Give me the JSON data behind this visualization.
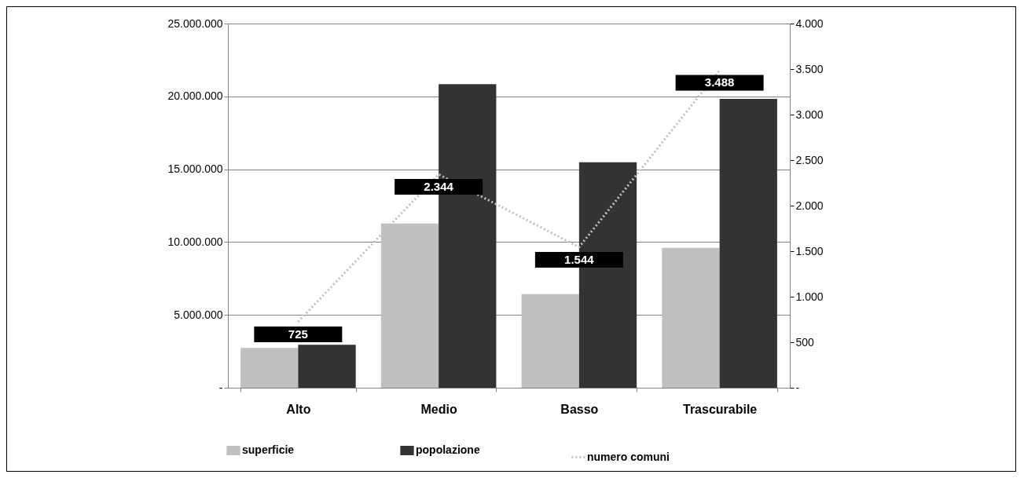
{
  "chart_data": {
    "type": "bar",
    "categories": [
      "Alto",
      "Medio",
      "Basso",
      "Trascurabile"
    ],
    "series": [
      {
        "name": "superficie",
        "color": "#c0c0c0",
        "values": [
          2740000,
          11270000,
          6430000,
          9600000
        ]
      },
      {
        "name": "popolazione",
        "color": "#333333",
        "values": [
          2950000,
          20840000,
          15480000,
          19830000
        ]
      },
      {
        "name": "numero comuni",
        "type": "line",
        "axis": "y2",
        "color": "#c0c0c0",
        "line_style": "dotted",
        "values": [
          725,
          2344,
          1544,
          3488
        ],
        "value_labels": [
          "725",
          "2.344",
          "1.544",
          "3.488"
        ]
      }
    ],
    "ylim": [
      0,
      25000000
    ],
    "yticks": [
      {
        "value": 0,
        "label": "-"
      },
      {
        "value": 5000000,
        "label": "5.000.000"
      },
      {
        "value": 10000000,
        "label": "10.000.000"
      },
      {
        "value": 15000000,
        "label": "15.000.000"
      },
      {
        "value": 20000000,
        "label": "20.000.000"
      },
      {
        "value": 25000000,
        "label": "25.000.000"
      }
    ],
    "y2lim": [
      0,
      4000
    ],
    "y2ticks": [
      {
        "value": 0,
        "label": "-"
      },
      500,
      {
        "value": 1000,
        "label": "1.000"
      },
      {
        "value": 1500,
        "label": "1.500"
      },
      {
        "value": 2000,
        "label": "2.000"
      },
      {
        "value": 2500,
        "label": "2.500"
      },
      {
        "value": 3000,
        "label": "3.000"
      },
      {
        "value": 3500,
        "label": "3.500"
      },
      {
        "value": 4000,
        "label": "4.000"
      }
    ],
    "grid": "y",
    "legend": "bottom"
  }
}
